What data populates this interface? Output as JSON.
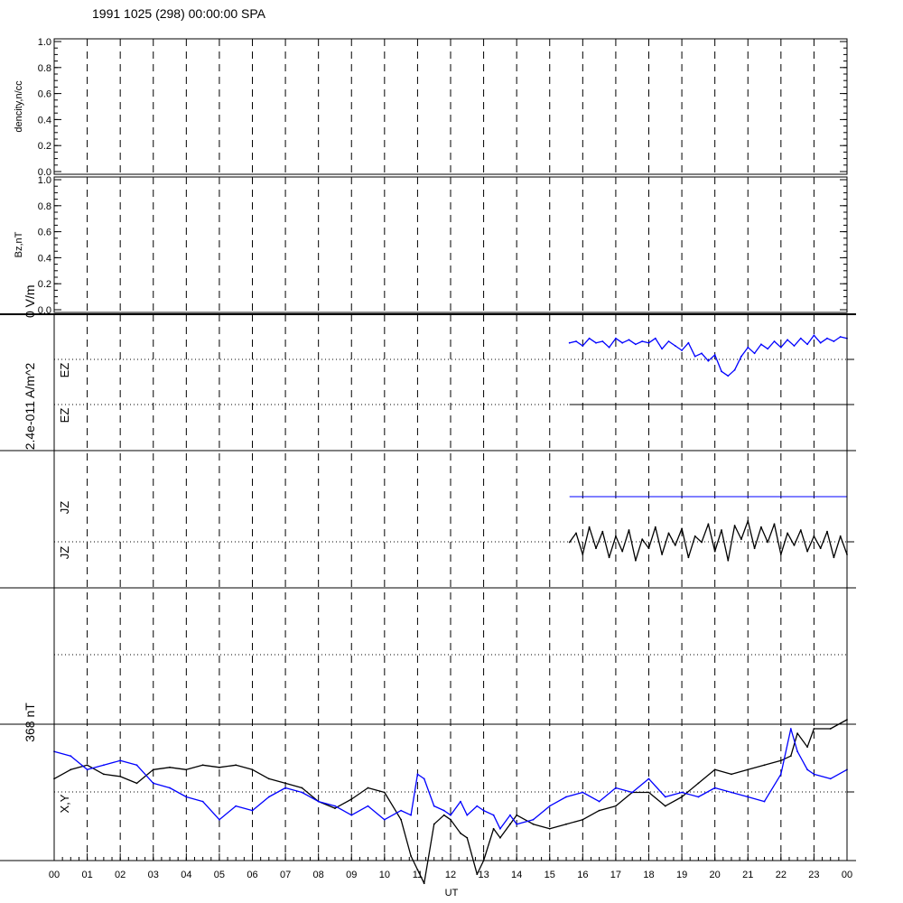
{
  "title": "1991 1025 (298) 00:00:00 SPA",
  "colors": {
    "axis": "#000000",
    "blue": "#0000ff",
    "black": "#000000",
    "background": "#ffffff"
  },
  "chart_data": [
    {
      "type": "line",
      "panel": "density",
      "ylabel": "dencity,n/cc",
      "ylim": [
        0,
        1
      ],
      "yticks": [
        "0.0",
        "0.2",
        "0.4",
        "0.6",
        "0.8",
        "1.0"
      ],
      "series": []
    },
    {
      "type": "line",
      "panel": "bz",
      "ylabel": "Bz,nT",
      "ylim": [
        0,
        1
      ],
      "yticks": [
        "0.0",
        "0.2",
        "0.4",
        "0.6",
        "0.8",
        "1.0"
      ],
      "series": []
    },
    {
      "type": "line",
      "panel": "ez",
      "scale_label": "0 V/m",
      "trace_labels": [
        "EZ",
        "EZ"
      ],
      "ylim": [
        -1.5,
        1.5
      ],
      "x": [
        15.6,
        15.8,
        16.0,
        16.2,
        16.4,
        16.6,
        16.8,
        17.0,
        17.2,
        17.4,
        17.6,
        17.8,
        18.0,
        18.2,
        18.4,
        18.6,
        18.8,
        19.0,
        19.2,
        19.4,
        19.6,
        19.8,
        20.0,
        20.2,
        20.4,
        20.6,
        20.8,
        21.0,
        21.2,
        21.4,
        21.6,
        21.8,
        22.0,
        22.2,
        22.4,
        22.6,
        22.8,
        23.0,
        23.2,
        23.4,
        23.6,
        23.8,
        24.0
      ],
      "series": [
        {
          "color": "#0000ff",
          "values": [
            0.55,
            0.6,
            0.45,
            0.7,
            0.55,
            0.6,
            0.4,
            0.7,
            0.55,
            0.65,
            0.5,
            0.6,
            0.55,
            0.7,
            0.35,
            0.6,
            0.45,
            0.3,
            0.55,
            0.1,
            0.2,
            -0.05,
            0.15,
            -0.4,
            -0.55,
            -0.35,
            0.1,
            0.4,
            0.2,
            0.5,
            0.35,
            0.6,
            0.4,
            0.65,
            0.45,
            0.7,
            0.5,
            0.8,
            0.55,
            0.7,
            0.6,
            0.75,
            0.7
          ]
        }
      ]
    },
    {
      "type": "line",
      "panel": "jz",
      "scale_label": "2.4e-011 A/m^2",
      "trace_labels": [
        "JZ",
        "JZ"
      ],
      "ylim": [
        -1.5,
        1.5
      ],
      "x": [
        15.6,
        15.8,
        16.0,
        16.2,
        16.4,
        16.6,
        16.8,
        17.0,
        17.2,
        17.4,
        17.6,
        17.8,
        18.0,
        18.2,
        18.4,
        18.6,
        18.8,
        19.0,
        19.2,
        19.4,
        19.6,
        19.8,
        20.0,
        20.2,
        20.4,
        20.6,
        20.8,
        21.0,
        21.2,
        21.4,
        21.6,
        21.8,
        22.0,
        22.2,
        22.4,
        22.6,
        22.8,
        23.0,
        23.2,
        23.4,
        23.6,
        23.8,
        24.0
      ],
      "series": [
        {
          "color": "#000000",
          "values": [
            0.0,
            0.3,
            -0.4,
            0.5,
            -0.2,
            0.35,
            -0.5,
            0.2,
            -0.3,
            0.4,
            -0.6,
            0.1,
            -0.2,
            0.5,
            -0.4,
            0.3,
            -0.1,
            0.45,
            -0.5,
            0.2,
            0.0,
            0.6,
            -0.3,
            0.4,
            -0.6,
            0.55,
            0.1,
            0.7,
            -0.2,
            0.5,
            0.0,
            0.6,
            -0.4,
            0.3,
            -0.1,
            0.4,
            -0.3,
            0.2,
            -0.2,
            0.35,
            -0.5,
            0.2,
            -0.4
          ]
        }
      ]
    },
    {
      "type": "line",
      "panel": "xy",
      "scale_label": "368 nT",
      "trace_labels": [
        "X,Y"
      ],
      "ylim": [
        -1.5,
        1.5
      ],
      "x": [
        0.0,
        0.5,
        1.0,
        1.5,
        2.0,
        2.5,
        3.0,
        3.5,
        4.0,
        4.5,
        5.0,
        5.5,
        6.0,
        6.5,
        7.0,
        7.5,
        8.0,
        8.5,
        9.0,
        9.5,
        10.0,
        10.5,
        10.8,
        11.0,
        11.2,
        11.5,
        11.8,
        12.0,
        12.3,
        12.5,
        12.8,
        13.0,
        13.3,
        13.5,
        13.8,
        14.0,
        14.5,
        15.0,
        15.5,
        16.0,
        16.5,
        17.0,
        17.5,
        18.0,
        18.5,
        19.0,
        19.5,
        20.0,
        20.5,
        21.0,
        21.5,
        22.0,
        22.3,
        22.5,
        22.8,
        23.0,
        23.5,
        24.0
      ],
      "series": [
        {
          "name": "X",
          "color": "#000000",
          "values": [
            0.3,
            0.5,
            0.6,
            0.4,
            0.35,
            0.2,
            0.5,
            0.55,
            0.5,
            0.6,
            0.55,
            0.6,
            0.5,
            0.3,
            0.2,
            0.1,
            -0.2,
            -0.35,
            -0.15,
            0.1,
            0.0,
            -0.6,
            -1.4,
            -1.7,
            -2.0,
            -0.7,
            -0.5,
            -0.6,
            -0.9,
            -1.0,
            -1.8,
            -1.5,
            -0.8,
            -1.0,
            -0.7,
            -0.5,
            -0.7,
            -0.8,
            -0.7,
            -0.6,
            -0.4,
            -0.3,
            0.0,
            0.0,
            -0.3,
            -0.1,
            0.2,
            0.5,
            0.4,
            0.5,
            0.6,
            0.7,
            0.8,
            1.3,
            1.0,
            1.4,
            1.4,
            1.6
          ]
        },
        {
          "name": "Y",
          "color": "#0000ff",
          "values": [
            0.9,
            0.8,
            0.5,
            0.6,
            0.7,
            0.6,
            0.2,
            0.1,
            -0.1,
            -0.2,
            -0.6,
            -0.3,
            -0.4,
            -0.1,
            0.1,
            0.0,
            -0.2,
            -0.3,
            -0.5,
            -0.3,
            -0.6,
            -0.4,
            -0.5,
            0.4,
            0.3,
            -0.3,
            -0.4,
            -0.5,
            -0.2,
            -0.5,
            -0.3,
            -0.4,
            -0.5,
            -0.8,
            -0.5,
            -0.7,
            -0.6,
            -0.3,
            -0.1,
            0.0,
            -0.2,
            0.1,
            0.0,
            0.3,
            -0.1,
            0.0,
            -0.1,
            0.1,
            0.0,
            -0.1,
            -0.2,
            0.4,
            1.4,
            0.9,
            0.5,
            0.4,
            0.3,
            0.5
          ]
        }
      ]
    }
  ],
  "xaxis": {
    "label": "UT",
    "ticks": [
      "00",
      "01",
      "02",
      "03",
      "04",
      "05",
      "06",
      "07",
      "08",
      "09",
      "10",
      "11",
      "12",
      "13",
      "14",
      "15",
      "16",
      "17",
      "18",
      "19",
      "20",
      "21",
      "22",
      "23",
      "00"
    ]
  }
}
